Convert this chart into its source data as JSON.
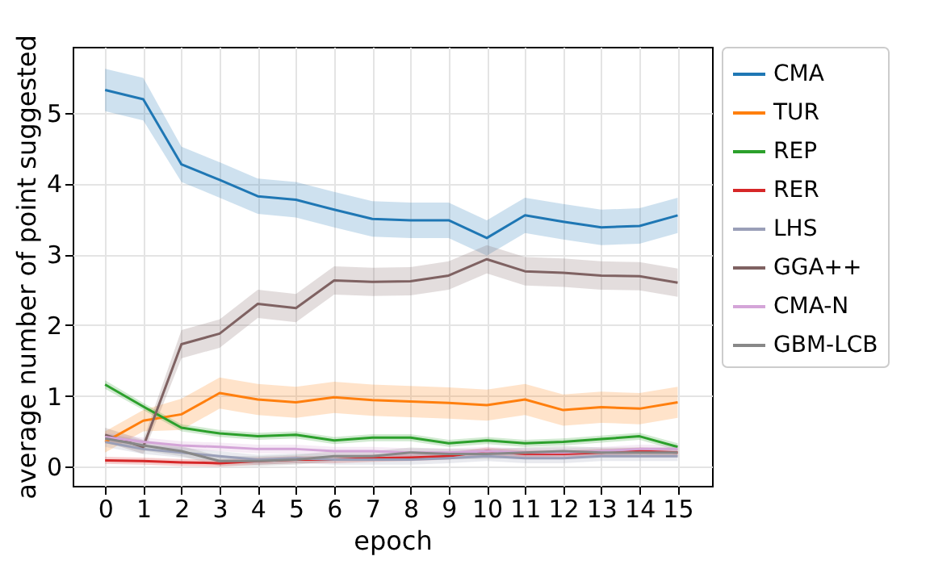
{
  "chart_data": {
    "type": "line",
    "xlabel": "epoch",
    "ylabel": "average number of point suggested",
    "x": [
      0,
      1,
      2,
      3,
      4,
      5,
      6,
      7,
      8,
      9,
      10,
      11,
      12,
      13,
      14,
      15
    ],
    "xlim": [
      -0.85,
      15.9
    ],
    "xticks": [
      0,
      1,
      2,
      3,
      4,
      5,
      6,
      7,
      8,
      9,
      10,
      11,
      12,
      13,
      14,
      15
    ],
    "ylim": [
      -0.27,
      5.93
    ],
    "yticks": [
      0,
      1,
      2,
      3,
      4,
      5
    ],
    "grid": true,
    "legend": "right",
    "line_style": "solid",
    "series": [
      {
        "name": "CMA",
        "color": "#1f77b4",
        "values": [
          5.32,
          5.19,
          4.27,
          4.05,
          3.82,
          3.77,
          3.63,
          3.5,
          3.48,
          3.48,
          3.23,
          3.55,
          3.46,
          3.38,
          3.4,
          3.55
        ],
        "lower": [
          5.02,
          4.89,
          4.02,
          3.8,
          3.57,
          3.52,
          3.38,
          3.25,
          3.23,
          3.23,
          2.98,
          3.3,
          3.21,
          3.13,
          3.15,
          3.3
        ],
        "upper": [
          5.62,
          5.49,
          4.52,
          4.3,
          4.07,
          4.02,
          3.88,
          3.75,
          3.73,
          3.73,
          3.48,
          3.8,
          3.71,
          3.63,
          3.65,
          3.8
        ]
      },
      {
        "name": "TUR",
        "color": "#ff7f0e",
        "values": [
          0.35,
          0.65,
          0.74,
          1.04,
          0.95,
          0.91,
          0.98,
          0.94,
          0.92,
          0.9,
          0.87,
          0.95,
          0.8,
          0.84,
          0.82,
          0.91
        ],
        "lower": [
          0.2,
          0.5,
          0.52,
          0.82,
          0.73,
          0.69,
          0.76,
          0.72,
          0.7,
          0.68,
          0.65,
          0.73,
          0.58,
          0.62,
          0.6,
          0.69
        ],
        "upper": [
          0.5,
          0.8,
          0.96,
          1.26,
          1.17,
          1.13,
          1.2,
          1.16,
          1.14,
          1.12,
          1.09,
          1.17,
          1.02,
          1.06,
          1.04,
          1.13
        ]
      },
      {
        "name": "REP",
        "color": "#2ca02c",
        "values": [
          1.16,
          0.85,
          0.55,
          0.47,
          0.43,
          0.45,
          0.37,
          0.41,
          0.41,
          0.33,
          0.37,
          0.33,
          0.35,
          0.39,
          0.43,
          0.28
        ],
        "lower": [
          1.1,
          0.8,
          0.5,
          0.42,
          0.38,
          0.4,
          0.32,
          0.36,
          0.36,
          0.28,
          0.32,
          0.28,
          0.3,
          0.34,
          0.38,
          0.23
        ],
        "upper": [
          1.22,
          0.9,
          0.6,
          0.52,
          0.48,
          0.5,
          0.42,
          0.46,
          0.46,
          0.38,
          0.42,
          0.38,
          0.4,
          0.44,
          0.48,
          0.33
        ]
      },
      {
        "name": "RER",
        "color": "#d62728",
        "values": [
          0.09,
          0.08,
          0.06,
          0.05,
          0.08,
          0.1,
          0.1,
          0.12,
          0.13,
          0.15,
          0.22,
          0.18,
          0.18,
          0.2,
          0.22,
          0.2
        ],
        "lower": [
          0.04,
          0.03,
          0.01,
          0,
          0.03,
          0.05,
          0.05,
          0.07,
          0.08,
          0.1,
          0.17,
          0.13,
          0.13,
          0.15,
          0.17,
          0.15
        ],
        "upper": [
          0.14,
          0.13,
          0.11,
          0.1,
          0.13,
          0.15,
          0.15,
          0.17,
          0.18,
          0.2,
          0.27,
          0.23,
          0.23,
          0.25,
          0.27,
          0.25
        ]
      },
      {
        "name": "LHS",
        "color": "#9a9fb8",
        "values": [
          0.35,
          0.25,
          0.2,
          0.15,
          0.1,
          0.12,
          0.1,
          0.1,
          0.1,
          0.12,
          0.15,
          0.12,
          0.12,
          0.15,
          0.15,
          0.15
        ],
        "lower": [
          0.28,
          0.18,
          0.13,
          0.08,
          0.03,
          0.05,
          0.03,
          0.03,
          0.03,
          0.05,
          0.08,
          0.05,
          0.05,
          0.08,
          0.08,
          0.08
        ],
        "upper": [
          0.42,
          0.32,
          0.27,
          0.22,
          0.17,
          0.19,
          0.17,
          0.17,
          0.17,
          0.19,
          0.22,
          0.19,
          0.19,
          0.22,
          0.22,
          0.22
        ]
      },
      {
        "name": "GGA++",
        "color": "#7f6262",
        "values": [
          0.45,
          0.28,
          1.73,
          1.88,
          2.3,
          2.24,
          2.63,
          2.61,
          2.62,
          2.7,
          2.93,
          2.76,
          2.74,
          2.7,
          2.69,
          2.6
        ],
        "lower": [
          0.35,
          0.18,
          1.53,
          1.68,
          2.1,
          2.04,
          2.43,
          2.41,
          2.42,
          2.5,
          2.73,
          2.56,
          2.54,
          2.5,
          2.49,
          2.4
        ],
        "upper": [
          0.55,
          0.38,
          1.93,
          2.08,
          2.5,
          2.44,
          2.83,
          2.81,
          2.82,
          2.9,
          3.13,
          2.96,
          2.94,
          2.9,
          2.89,
          2.8
        ]
      },
      {
        "name": "CMA-N",
        "color": "#d4a5d8",
        "values": [
          0.42,
          0.35,
          0.3,
          0.28,
          0.25,
          0.25,
          0.22,
          0.22,
          0.2,
          0.2,
          0.22,
          0.2,
          0.2,
          0.22,
          0.25,
          0.25
        ],
        "lower": [
          0.36,
          0.29,
          0.24,
          0.22,
          0.19,
          0.19,
          0.16,
          0.16,
          0.14,
          0.14,
          0.16,
          0.14,
          0.14,
          0.16,
          0.19,
          0.19
        ],
        "upper": [
          0.48,
          0.41,
          0.36,
          0.34,
          0.31,
          0.31,
          0.28,
          0.28,
          0.26,
          0.26,
          0.28,
          0.26,
          0.26,
          0.28,
          0.31,
          0.31
        ]
      },
      {
        "name": "GBM-LCB",
        "color": "#888888",
        "values": [
          0.4,
          0.3,
          0.22,
          0.08,
          0.08,
          0.1,
          0.15,
          0.15,
          0.2,
          0.18,
          0.18,
          0.2,
          0.22,
          0.2,
          0.2,
          0.2
        ],
        "lower": [
          0.33,
          0.23,
          0.15,
          0.01,
          0.01,
          0.03,
          0.08,
          0.08,
          0.13,
          0.11,
          0.11,
          0.13,
          0.15,
          0.13,
          0.13,
          0.13
        ],
        "upper": [
          0.47,
          0.37,
          0.29,
          0.15,
          0.15,
          0.17,
          0.22,
          0.22,
          0.27,
          0.25,
          0.25,
          0.27,
          0.29,
          0.27,
          0.27,
          0.27
        ]
      }
    ]
  }
}
